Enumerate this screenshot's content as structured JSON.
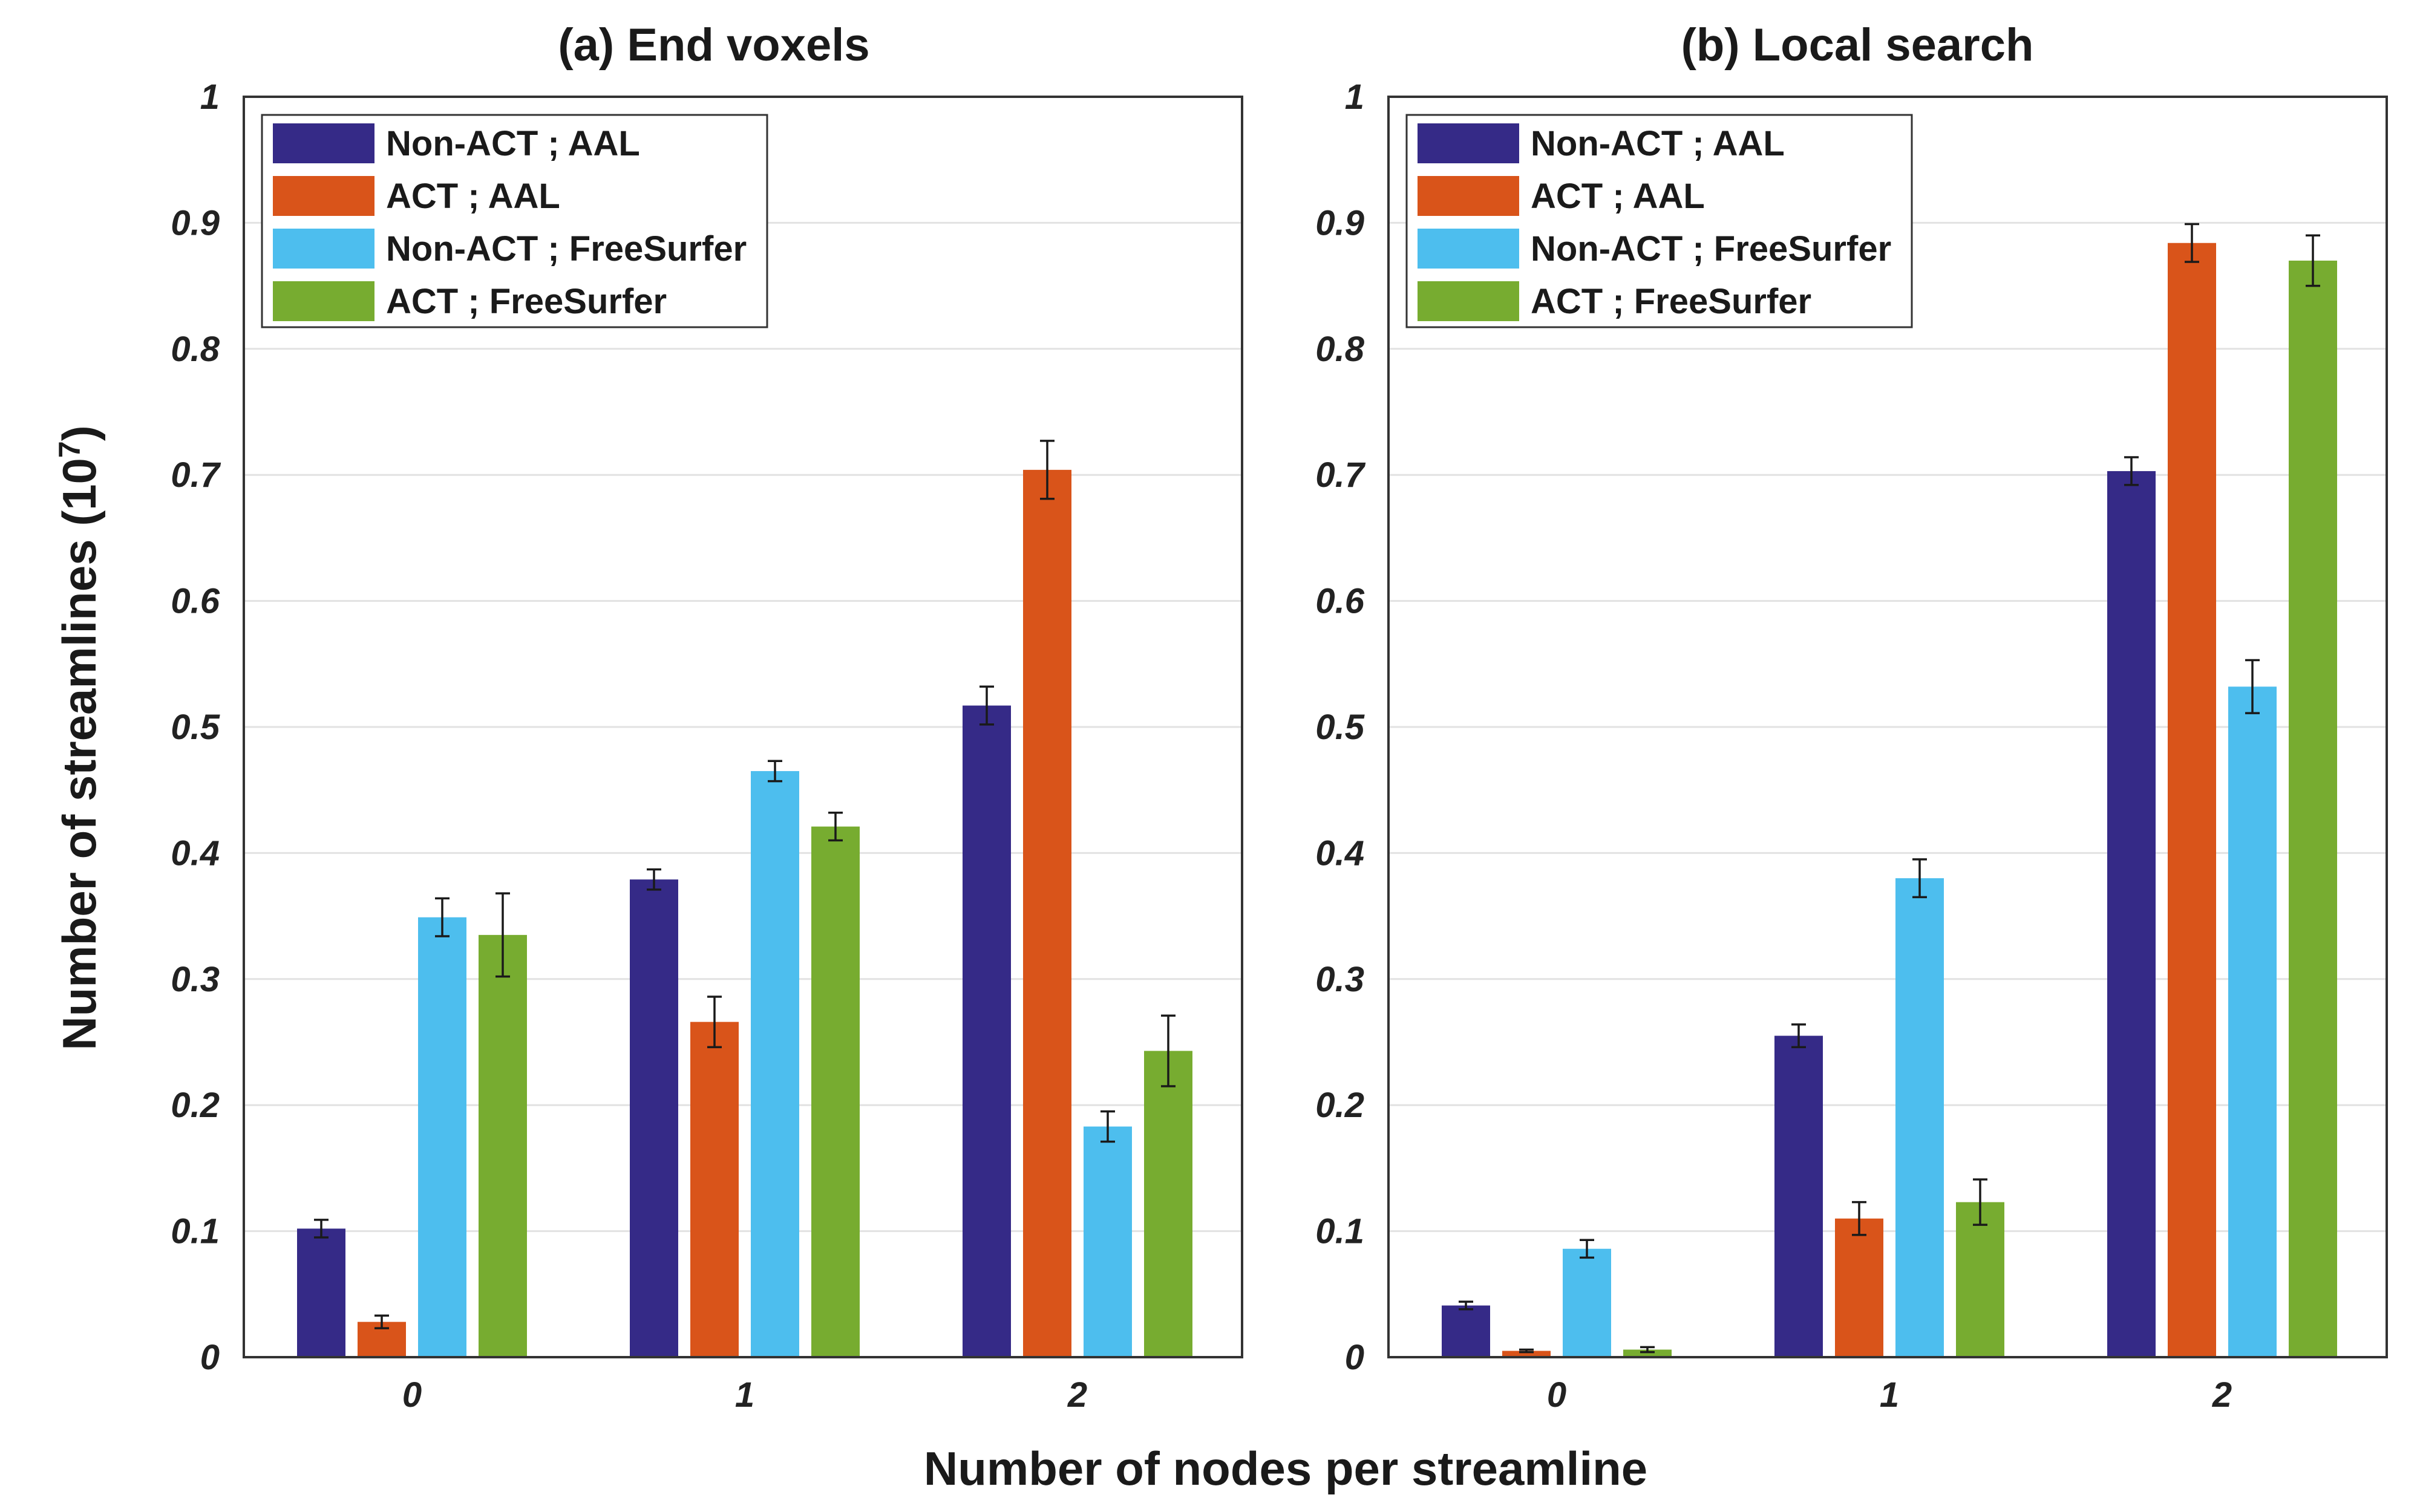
{
  "figure": {
    "ylabel": "Number of streamlines (10",
    "ylabel_exponent": "7",
    "ylabel_close": ")",
    "xlabel": "Number of nodes per streamline"
  },
  "colors": {
    "Non-ACT ; AAL": "#352a87",
    "ACT ; AAL": "#d9541a",
    "Non-ACT ; FreeSurfer": "#4dbeee",
    "ACT ; FreeSurfer": "#77ac30"
  },
  "chart_data": [
    {
      "type": "bar",
      "title": "(a) End voxels",
      "categories": [
        "0",
        "1",
        "2"
      ],
      "ylim": [
        0,
        1
      ],
      "yticks": [
        "0",
        "0.1",
        "0.2",
        "0.3",
        "0.4",
        "0.5",
        "0.6",
        "0.7",
        "0.8",
        "0.9",
        "1"
      ],
      "grid": true,
      "legend_position": "top-left",
      "series": [
        {
          "name": "Non-ACT ; AAL",
          "values": [
            0.102,
            0.379,
            0.517
          ],
          "errors": [
            0.007,
            0.008,
            0.015
          ]
        },
        {
          "name": "ACT ; AAL",
          "values": [
            0.028,
            0.266,
            0.704
          ],
          "errors": [
            0.005,
            0.02,
            0.023
          ]
        },
        {
          "name": "Non-ACT ; FreeSurfer",
          "values": [
            0.349,
            0.465,
            0.183
          ],
          "errors": [
            0.015,
            0.008,
            0.012
          ]
        },
        {
          "name": "ACT ; FreeSurfer",
          "values": [
            0.335,
            0.421,
            0.243
          ],
          "errors": [
            0.033,
            0.011,
            0.028
          ]
        }
      ]
    },
    {
      "type": "bar",
      "title": "(b) Local search",
      "categories": [
        "0",
        "1",
        "2"
      ],
      "ylim": [
        0,
        1
      ],
      "yticks": [
        "0",
        "0.1",
        "0.2",
        "0.3",
        "0.4",
        "0.5",
        "0.6",
        "0.7",
        "0.8",
        "0.9",
        "1"
      ],
      "grid": true,
      "legend_position": "top-left",
      "series": [
        {
          "name": "Non-ACT ; AAL",
          "values": [
            0.041,
            0.255,
            0.703
          ],
          "errors": [
            0.003,
            0.009,
            0.011
          ]
        },
        {
          "name": "ACT ; AAL",
          "values": [
            0.005,
            0.11,
            0.884
          ],
          "errors": [
            0.001,
            0.013,
            0.015
          ]
        },
        {
          "name": "Non-ACT ; FreeSurfer",
          "values": [
            0.086,
            0.38,
            0.532
          ],
          "errors": [
            0.007,
            0.015,
            0.021
          ]
        },
        {
          "name": "ACT ; FreeSurfer",
          "values": [
            0.006,
            0.123,
            0.87
          ],
          "errors": [
            0.002,
            0.018,
            0.02
          ]
        }
      ]
    }
  ]
}
